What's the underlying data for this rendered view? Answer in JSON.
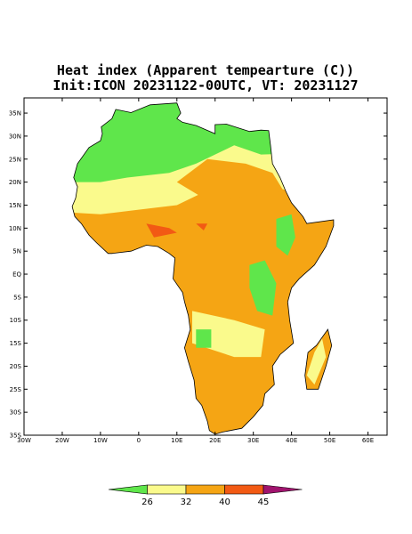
{
  "title": "Heat index (Apparent tempearture (C))",
  "subtitle": "Init:ICON 20231122-00UTC, VT: 20231127",
  "map": {
    "xlim": [
      -30,
      65
    ],
    "ylim": [
      -35,
      38.3
    ],
    "xticks": [
      {
        "value": -30,
        "label": "30W"
      },
      {
        "value": -20,
        "label": "20W"
      },
      {
        "value": -10,
        "label": "10W"
      },
      0,
      {
        "value": 10,
        "label": "10E"
      },
      {
        "value": 20,
        "label": "20E"
      },
      {
        "value": 30,
        "label": "30E"
      },
      {
        "value": 40,
        "label": "40E"
      },
      {
        "value": 50,
        "label": "50E"
      },
      {
        "value": 60,
        "label": "60E"
      }
    ],
    "yticks": [
      {
        "value": 35,
        "label": "35N"
      },
      {
        "value": 30,
        "label": "30N"
      },
      {
        "value": 25,
        "label": "25N"
      },
      {
        "value": 20,
        "label": "20N"
      },
      {
        "value": 15,
        "label": "15N"
      },
      {
        "value": 10,
        "label": "10N"
      },
      {
        "value": 5,
        "label": "5N"
      },
      {
        "value": 0,
        "label": "EQ"
      },
      {
        "value": -5,
        "label": "5S"
      },
      {
        "value": -10,
        "label": "10S"
      },
      {
        "value": -15,
        "label": "15S"
      },
      {
        "value": -20,
        "label": "20S"
      },
      {
        "value": -25,
        "label": "25S"
      },
      {
        "value": -30,
        "label": "30S"
      },
      {
        "value": -35,
        "label": "35S"
      }
    ]
  },
  "colorbar": {
    "levels": [
      26,
      32,
      40,
      45
    ],
    "colors": [
      "#5fe64b",
      "#fafa8c",
      "#f5a514",
      "#f25a14",
      "#a0146e"
    ]
  }
}
